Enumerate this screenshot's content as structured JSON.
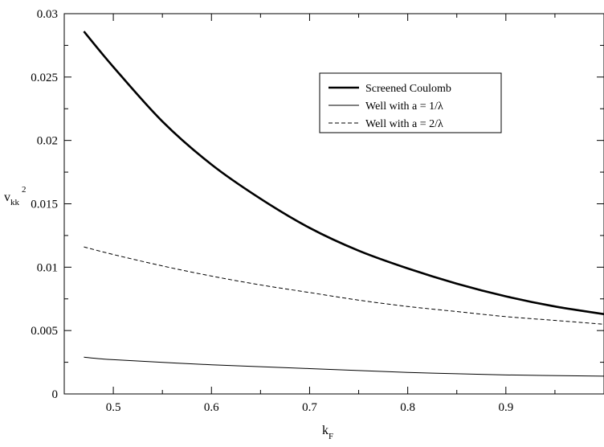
{
  "chart_data": {
    "type": "line",
    "title": "",
    "xlabel_main": "k",
    "xlabel_sub": "F",
    "ylabel_main": "v",
    "ylabel_sub": "kk",
    "ylabel_sup": "2",
    "xlim": [
      0.45,
      1.0
    ],
    "ylim": [
      0,
      0.03
    ],
    "x_ticks": [
      0.5,
      0.6,
      0.7,
      0.8,
      0.9
    ],
    "x_tick_labels": [
      "0.5",
      "0.6",
      "0.7",
      "0.8",
      "0.9"
    ],
    "y_ticks": [
      0,
      0.005,
      0.01,
      0.015,
      0.02,
      0.025,
      0.03
    ],
    "y_tick_labels": [
      "0",
      "0.005",
      "0.01",
      "0.015",
      "0.02",
      "0.025",
      "0.03"
    ],
    "grid": false,
    "legend_position": "top-center",
    "series": [
      {
        "name": "Screened Coulomb",
        "style": "solid-thick",
        "x": [
          0.47,
          0.5,
          0.55,
          0.6,
          0.65,
          0.7,
          0.75,
          0.8,
          0.85,
          0.9,
          0.95,
          1.0
        ],
        "y": [
          0.0286,
          0.0258,
          0.0215,
          0.0181,
          0.0154,
          0.0131,
          0.0113,
          0.0099,
          0.0087,
          0.0077,
          0.0069,
          0.0063
        ]
      },
      {
        "name": "Well with a = 1/λ",
        "style": "solid-thin",
        "x": [
          0.47,
          0.5,
          0.6,
          0.7,
          0.8,
          0.9,
          1.0
        ],
        "y": [
          0.0029,
          0.0027,
          0.0023,
          0.002,
          0.0017,
          0.0015,
          0.0014
        ]
      },
      {
        "name": "Well with a = 2/λ",
        "style": "dashed",
        "x": [
          0.47,
          0.5,
          0.55,
          0.6,
          0.65,
          0.7,
          0.75,
          0.8,
          0.85,
          0.9,
          0.95,
          1.0
        ],
        "y": [
          0.0116,
          0.011,
          0.0101,
          0.0093,
          0.0086,
          0.008,
          0.0074,
          0.0069,
          0.0065,
          0.0061,
          0.0058,
          0.0055
        ]
      }
    ]
  }
}
